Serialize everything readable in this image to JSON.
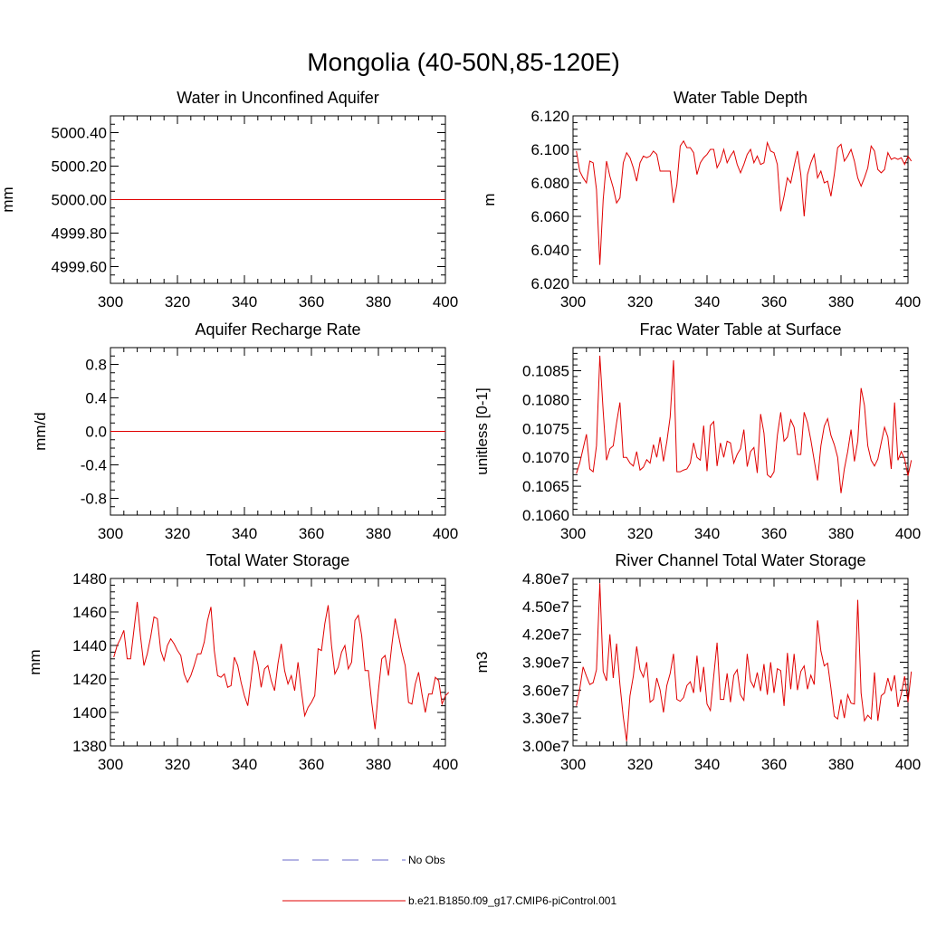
{
  "figure": {
    "title": "Mongolia (40-50N,85-120E)"
  },
  "legend": {
    "entries": [
      {
        "label": "No Obs",
        "color": "#6a6ac8",
        "style": "dashed"
      },
      {
        "label": "b.e21.B1850.f09_g17.CMIP6-piControl.001",
        "color": "#e00000",
        "style": "solid"
      }
    ]
  },
  "chart_data": [
    {
      "type": "line",
      "title": "Water in Unconfined Aquifer",
      "ylabel": "mm",
      "xlim": [
        300,
        400
      ],
      "ylim": [
        4999.5,
        5000.5
      ],
      "xticks": [
        "300",
        "320",
        "340",
        "360",
        "380",
        "400"
      ],
      "yticks": [
        {
          "v": 4999.6,
          "label": "4999.60"
        },
        {
          "v": 4999.8,
          "label": "4999.80"
        },
        {
          "v": 5000.0,
          "label": "5000.00"
        },
        {
          "v": 5000.2,
          "label": "5000.20"
        },
        {
          "v": 5000.4,
          "label": "5000.40"
        }
      ],
      "yminor": [
        4999.5,
        4999.55,
        4999.65,
        4999.7,
        4999.75,
        4999.85,
        4999.9,
        4999.95,
        5000.05,
        5000.1,
        5000.15,
        5000.25,
        5000.3,
        5000.35,
        5000.45,
        5000.5
      ],
      "x_start": 300,
      "color": "#e00000",
      "series": [
        {
          "name": "b.e21.B1850.f09_g17.CMIP6-piControl.001",
          "values": "constant",
          "constant": 5000.0,
          "x_range": [
            300,
            400
          ]
        }
      ]
    },
    {
      "type": "line",
      "title": "Water Table Depth",
      "ylabel": "m",
      "xlim": [
        300,
        400
      ],
      "ylim": [
        6.02,
        6.12
      ],
      "xticks": [
        "300",
        "320",
        "340",
        "360",
        "380",
        "400"
      ],
      "yticks": [
        {
          "v": 6.02,
          "label": "6.020"
        },
        {
          "v": 6.04,
          "label": "6.040"
        },
        {
          "v": 6.06,
          "label": "6.060"
        },
        {
          "v": 6.08,
          "label": "6.080"
        },
        {
          "v": 6.1,
          "label": "6.100"
        },
        {
          "v": 6.12,
          "label": "6.120"
        }
      ],
      "yminor": [
        6.024,
        6.028,
        6.032,
        6.036,
        6.044,
        6.048,
        6.052,
        6.056,
        6.064,
        6.068,
        6.072,
        6.076,
        6.084,
        6.088,
        6.092,
        6.096,
        6.104,
        6.108,
        6.112,
        6.116
      ],
      "x_start": 301,
      "color": "#e00000",
      "series": [
        {
          "name": "b.e21.B1850.f09_g17.CMIP6-piControl.001",
          "values": [
            6.099,
            6.087,
            6.083,
            6.08,
            6.093,
            6.092,
            6.076,
            6.031,
            6.07,
            6.093,
            6.084,
            6.077,
            6.068,
            6.071,
            6.092,
            6.098,
            6.095,
            6.089,
            6.081,
            6.092,
            6.096,
            6.095,
            6.096,
            6.099,
            6.097,
            6.087,
            6.087,
            6.087,
            6.087,
            6.068,
            6.079,
            6.102,
            6.105,
            6.101,
            6.101,
            6.098,
            6.085,
            6.092,
            6.095,
            6.097,
            6.1,
            6.1,
            6.089,
            6.093,
            6.1,
            6.092,
            6.096,
            6.099,
            6.091,
            6.086,
            6.091,
            6.097,
            6.1,
            6.092,
            6.096,
            6.091,
            6.092,
            6.104,
            6.099,
            6.098,
            6.091,
            6.063,
            6.072,
            6.083,
            6.08,
            6.09,
            6.099,
            6.085,
            6.06,
            6.085,
            6.092,
            6.097,
            6.083,
            6.087,
            6.08,
            6.081,
            6.072,
            6.085,
            6.101,
            6.103,
            6.093,
            6.096,
            6.1,
            6.093,
            6.083,
            6.078,
            6.083,
            6.089,
            6.102,
            6.099,
            6.088,
            6.086,
            6.088,
            6.098,
            6.094,
            6.095,
            6.094,
            6.095,
            6.091,
            6.096,
            6.093
          ]
        }
      ]
    },
    {
      "type": "line",
      "title": "Aquifer Recharge Rate",
      "ylabel": "mm/d",
      "xlim": [
        300,
        400
      ],
      "ylim": [
        -1.0,
        1.0
      ],
      "xticks": [
        "300",
        "320",
        "340",
        "360",
        "380",
        "400"
      ],
      "yticks": [
        {
          "v": -0.8,
          "label": "-0.8"
        },
        {
          "v": -0.4,
          "label": "-0.4"
        },
        {
          "v": 0.0,
          "label": "0.0"
        },
        {
          "v": 0.4,
          "label": "0.4"
        },
        {
          "v": 0.8,
          "label": "0.8"
        }
      ],
      "yminor": [
        -1.0,
        -0.9,
        -0.7,
        -0.6,
        -0.5,
        -0.3,
        -0.2,
        -0.1,
        0.1,
        0.2,
        0.3,
        0.5,
        0.6,
        0.7,
        0.9,
        1.0
      ],
      "x_start": 300,
      "color": "#e00000",
      "series": [
        {
          "name": "b.e21.B1850.f09_g17.CMIP6-piControl.001",
          "values": "constant",
          "constant": 0.0,
          "x_range": [
            300,
            400
          ]
        }
      ]
    },
    {
      "type": "line",
      "title": "Frac Water Table at Surface",
      "ylabel": "unitless [0-1]",
      "xlim": [
        300,
        400
      ],
      "ylim": [
        0.106,
        0.1089
      ],
      "xticks": [
        "300",
        "320",
        "340",
        "360",
        "380",
        "400"
      ],
      "yticks": [
        {
          "v": 0.106,
          "label": "0.1060"
        },
        {
          "v": 0.1065,
          "label": "0.1065"
        },
        {
          "v": 0.107,
          "label": "0.1070"
        },
        {
          "v": 0.1075,
          "label": "0.1075"
        },
        {
          "v": 0.108,
          "label": "0.1080"
        },
        {
          "v": 0.1085,
          "label": "0.1085"
        }
      ],
      "yminor": [
        0.1061,
        0.1062,
        0.1063,
        0.1064,
        0.1066,
        0.1067,
        0.1068,
        0.1069,
        0.1071,
        0.1072,
        0.1073,
        0.1074,
        0.1076,
        0.1077,
        0.1078,
        0.1079,
        0.1081,
        0.1082,
        0.1083,
        0.1084,
        0.1086,
        0.1087,
        0.1088
      ],
      "x_start": 301,
      "color": "#e00000",
      "series": [
        {
          "name": "b.e21.B1850.f09_g17.CMIP6-piControl.001",
          "values": [
            0.10672,
            0.1069,
            0.10715,
            0.1074,
            0.1068,
            0.10675,
            0.1072,
            0.10876,
            0.1078,
            0.10695,
            0.10715,
            0.1072,
            0.1076,
            0.10795,
            0.107,
            0.107,
            0.1069,
            0.10685,
            0.1071,
            0.10678,
            0.10683,
            0.10696,
            0.1069,
            0.10722,
            0.107,
            0.10735,
            0.10693,
            0.10727,
            0.1077,
            0.10868,
            0.10675,
            0.10675,
            0.10678,
            0.1068,
            0.1069,
            0.10725,
            0.107,
            0.10695,
            0.10755,
            0.10676,
            0.10755,
            0.10762,
            0.10685,
            0.10725,
            0.107,
            0.10728,
            0.10725,
            0.1069,
            0.10705,
            0.10715,
            0.10748,
            0.10684,
            0.1071,
            0.10717,
            0.10673,
            0.10775,
            0.10742,
            0.1067,
            0.10665,
            0.10675,
            0.10738,
            0.10778,
            0.10728,
            0.10735,
            0.10765,
            0.10752,
            0.10705,
            0.10705,
            0.10778,
            0.1076,
            0.1073,
            0.10695,
            0.1066,
            0.1072,
            0.10754,
            0.10767,
            0.10738,
            0.10722,
            0.107,
            0.10638,
            0.1068,
            0.1071,
            0.10748,
            0.10693,
            0.10728,
            0.1082,
            0.1079,
            0.1072,
            0.10695,
            0.10685,
            0.10697,
            0.10725,
            0.10752,
            0.10735,
            0.1068,
            0.10795,
            0.10695,
            0.1071,
            0.10697,
            0.10668,
            0.10695
          ]
        }
      ]
    },
    {
      "type": "line",
      "title": "Total Water Storage",
      "ylabel": "mm",
      "xlim": [
        300,
        400
      ],
      "ylim": [
        1380,
        1480
      ],
      "xticks": [
        "300",
        "320",
        "340",
        "360",
        "380",
        "400"
      ],
      "yticks": [
        {
          "v": 1380,
          "label": "1380"
        },
        {
          "v": 1400,
          "label": "1400"
        },
        {
          "v": 1420,
          "label": "1420"
        },
        {
          "v": 1440,
          "label": "1440"
        },
        {
          "v": 1460,
          "label": "1460"
        },
        {
          "v": 1480,
          "label": "1480"
        }
      ],
      "yminor": [
        1384,
        1388,
        1392,
        1396,
        1404,
        1408,
        1412,
        1416,
        1424,
        1428,
        1432,
        1436,
        1444,
        1448,
        1452,
        1456,
        1464,
        1468,
        1472,
        1476
      ],
      "x_start": 301,
      "color": "#e00000",
      "series": [
        {
          "name": "b.e21.B1850.f09_g17.CMIP6-piControl.001",
          "values": [
            1433,
            1440,
            1444,
            1449,
            1432,
            1432,
            1449,
            1466,
            1445,
            1428,
            1435,
            1445,
            1457,
            1456,
            1437,
            1431,
            1440,
            1444,
            1441,
            1437,
            1434,
            1423,
            1418,
            1422,
            1428,
            1435,
            1435,
            1442,
            1455,
            1463,
            1437,
            1422,
            1421,
            1423,
            1415,
            1416,
            1433,
            1428,
            1418,
            1410,
            1404,
            1420,
            1437,
            1429,
            1415,
            1426,
            1428,
            1419,
            1413,
            1429,
            1441,
            1425,
            1417,
            1422,
            1413,
            1430,
            1413,
            1398,
            1403,
            1406,
            1410,
            1438,
            1437,
            1453,
            1464,
            1440,
            1423,
            1427,
            1436,
            1440,
            1426,
            1430,
            1455,
            1458,
            1446,
            1425,
            1425,
            1406,
            1390,
            1413,
            1432,
            1434,
            1422,
            1440,
            1456,
            1446,
            1436,
            1428,
            1406,
            1405,
            1417,
            1424,
            1411,
            1400,
            1411,
            1411,
            1421,
            1419,
            1405,
            1410,
            1412
          ]
        }
      ]
    },
    {
      "type": "line",
      "title": "River Channel Total Water Storage",
      "ylabel": "m3",
      "xlim": [
        300,
        400
      ],
      "ylim": [
        30000000,
        48000000
      ],
      "xticks": [
        "300",
        "320",
        "340",
        "360",
        "380",
        "400"
      ],
      "yticks": [
        {
          "v": 30000000,
          "label": "3.00e7"
        },
        {
          "v": 33000000,
          "label": "3.30e7"
        },
        {
          "v": 36000000,
          "label": "3.60e7"
        },
        {
          "v": 39000000,
          "label": "3.90e7"
        },
        {
          "v": 42000000,
          "label": "4.20e7"
        },
        {
          "v": 45000000,
          "label": "4.50e7"
        },
        {
          "v": 48000000,
          "label": "4.80e7"
        }
      ],
      "yminor": [
        30600000,
        31200000,
        31800000,
        32400000,
        33600000,
        34200000,
        34800000,
        35400000,
        36600000,
        37200000,
        37800000,
        38400000,
        39600000,
        40200000,
        40800000,
        41400000,
        42600000,
        43200000,
        43800000,
        44400000,
        45600000,
        46200000,
        46800000,
        47400000
      ],
      "x_start": 301,
      "color": "#e00000",
      "series": [
        {
          "name": "b.e21.B1850.f09_g17.CMIP6-piControl.001",
          "values": [
            34300000,
            36100000,
            38500000,
            37500000,
            36600000,
            36800000,
            38200000,
            47500000,
            38000000,
            37000000,
            42000000,
            37300000,
            41000000,
            36600000,
            33100000,
            30500000,
            35400000,
            37500000,
            40700000,
            38200000,
            37400000,
            39000000,
            34700000,
            35000000,
            37300000,
            36000000,
            33600000,
            36500000,
            37800000,
            39900000,
            35000000,
            34800000,
            35200000,
            36500000,
            36900000,
            35700000,
            39700000,
            35800000,
            38500000,
            34500000,
            33800000,
            37500000,
            41100000,
            35000000,
            35000000,
            37800000,
            34700000,
            37600000,
            38200000,
            35500000,
            34900000,
            39900000,
            37000000,
            36300000,
            37900000,
            35900000,
            38800000,
            35500000,
            39000000,
            35700000,
            38300000,
            38100000,
            34300000,
            40000000,
            36100000,
            39900000,
            36000000,
            38000000,
            38600000,
            36100000,
            37600000,
            36600000,
            43500000,
            40200000,
            38600000,
            38900000,
            36200000,
            33200000,
            32900000,
            35000000,
            33000000,
            35500000,
            34600000,
            34500000,
            45700000,
            35700000,
            32700000,
            33300000,
            32900000,
            37900000,
            32700000,
            35400000,
            35700000,
            37300000,
            35900000,
            37600000,
            34200000,
            35600000,
            37500000,
            34700000,
            38000000
          ]
        }
      ]
    }
  ]
}
